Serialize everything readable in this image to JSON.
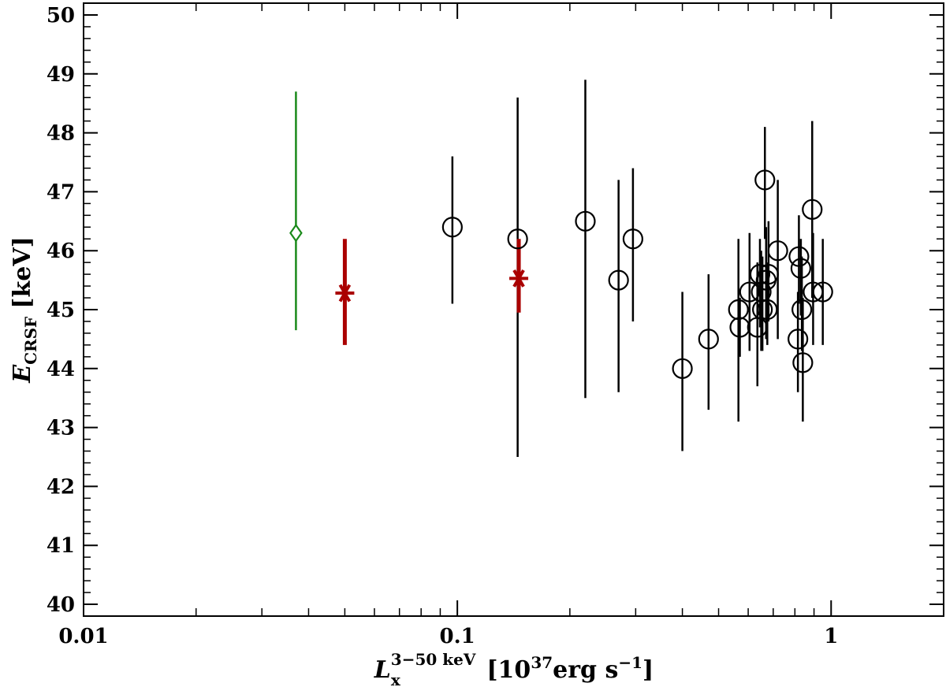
{
  "chart_data": {
    "type": "scatter",
    "x_scale": "log",
    "xlim": [
      0.01,
      2.0
    ],
    "ylim": [
      39.8,
      50.2
    ],
    "grid": false,
    "xlabel": {
      "main": "L",
      "sub": "x",
      "sup": "3−50 keV",
      "units": "[10",
      "units_exp": "37",
      "units_mid": "erg s",
      "units_exp2": "−1",
      "units_end": "]"
    },
    "ylabel": {
      "main": "E",
      "sub": "CRSF",
      "units": "[keV]"
    },
    "x_ticks": [
      {
        "value": 0.01,
        "label": "0.01"
      },
      {
        "value": 0.1,
        "label": "0.1"
      },
      {
        "value": 1,
        "label": "1"
      }
    ],
    "y_ticks": [
      {
        "value": 40,
        "label": "40"
      },
      {
        "value": 41,
        "label": "41"
      },
      {
        "value": 42,
        "label": "42"
      },
      {
        "value": 43,
        "label": "43"
      },
      {
        "value": 44,
        "label": "44"
      },
      {
        "value": 45,
        "label": "45"
      },
      {
        "value": 46,
        "label": "46"
      },
      {
        "value": 47,
        "label": "47"
      },
      {
        "value": 48,
        "label": "48"
      },
      {
        "value": 49,
        "label": "49"
      },
      {
        "value": 50,
        "label": "50"
      }
    ],
    "series": [
      {
        "marker": "circle",
        "color": "#000000",
        "points": [
          {
            "x": 0.097,
            "y": 46.4,
            "ylo": 45.1,
            "yhi": 47.6
          },
          {
            "x": 0.145,
            "y": 46.2,
            "ylo": 42.5,
            "yhi": 48.6
          },
          {
            "x": 0.22,
            "y": 46.5,
            "ylo": 43.5,
            "yhi": 48.9
          },
          {
            "x": 0.27,
            "y": 45.5,
            "ylo": 43.6,
            "yhi": 47.2
          },
          {
            "x": 0.295,
            "y": 46.2,
            "ylo": 44.8,
            "yhi": 47.4
          },
          {
            "x": 0.4,
            "y": 44.0,
            "ylo": 42.6,
            "yhi": 45.3
          },
          {
            "x": 0.47,
            "y": 44.5,
            "ylo": 43.3,
            "yhi": 45.6
          },
          {
            "x": 0.565,
            "y": 45.0,
            "ylo": 43.1,
            "yhi": 46.2
          },
          {
            "x": 0.57,
            "y": 44.7,
            "ylo": 44.2,
            "yhi": 45.2
          },
          {
            "x": 0.605,
            "y": 45.3,
            "ylo": 44.3,
            "yhi": 46.3
          },
          {
            "x": 0.635,
            "y": 44.7,
            "ylo": 43.7,
            "yhi": 45.8
          },
          {
            "x": 0.645,
            "y": 45.6,
            "ylo": 44.7,
            "yhi": 46.2
          },
          {
            "x": 0.65,
            "y": 45.3,
            "ylo": 44.3,
            "yhi": 46.0
          },
          {
            "x": 0.655,
            "y": 45.0,
            "ylo": 44.3,
            "yhi": 45.9
          },
          {
            "x": 0.665,
            "y": 47.2,
            "ylo": 46.2,
            "yhi": 48.1
          },
          {
            "x": 0.67,
            "y": 45.5,
            "ylo": 44.5,
            "yhi": 46.4
          },
          {
            "x": 0.675,
            "y": 45.0,
            "ylo": 44.4,
            "yhi": 45.8
          },
          {
            "x": 0.68,
            "y": 45.6,
            "ylo": 44.8,
            "yhi": 46.5
          },
          {
            "x": 0.72,
            "y": 46.0,
            "ylo": 44.5,
            "yhi": 47.2
          },
          {
            "x": 0.815,
            "y": 44.5,
            "ylo": 43.6,
            "yhi": 45.3
          },
          {
            "x": 0.82,
            "y": 45.9,
            "ylo": 45.1,
            "yhi": 46.6
          },
          {
            "x": 0.83,
            "y": 45.7,
            "ylo": 44.9,
            "yhi": 46.2
          },
          {
            "x": 0.835,
            "y": 45.0,
            "ylo": 44.3,
            "yhi": 45.9
          },
          {
            "x": 0.84,
            "y": 44.1,
            "ylo": 43.1,
            "yhi": 45.2
          },
          {
            "x": 0.89,
            "y": 46.7,
            "ylo": 45.2,
            "yhi": 48.2
          },
          {
            "x": 0.895,
            "y": 45.3,
            "ylo": 44.4,
            "yhi": 46.3
          },
          {
            "x": 0.95,
            "y": 45.3,
            "ylo": 44.4,
            "yhi": 46.2
          }
        ]
      },
      {
        "marker": "asterisk",
        "color": "#aa0000",
        "points": [
          {
            "x": 0.05,
            "y": 45.28,
            "ylo": 44.4,
            "yhi": 46.2
          },
          {
            "x": 0.146,
            "y": 45.53,
            "ylo": 44.95,
            "yhi": 46.2
          }
        ]
      },
      {
        "marker": "diamond",
        "color": "#1a8a1a",
        "points": [
          {
            "x": 0.037,
            "y": 46.3,
            "ylo": 44.65,
            "yhi": 48.7
          }
        ]
      }
    ]
  }
}
